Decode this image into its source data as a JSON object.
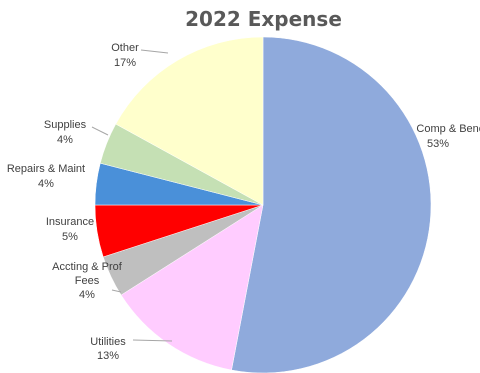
{
  "chart_data": {
    "type": "pie",
    "title": "2022 Expense",
    "slices": [
      {
        "name": "Comp & Bene (R",
        "percent_label": "53%",
        "value": 53,
        "color": "#8faadc"
      },
      {
        "name": "Utilities",
        "percent_label": "13%",
        "value": 13,
        "color": "#ffccff"
      },
      {
        "name": "Accting & Prof Fees",
        "percent_label": "4%",
        "value": 4,
        "color": "#bfbfbf"
      },
      {
        "name": "Insurance",
        "percent_label": "5%",
        "value": 5,
        "color": "#ff0000"
      },
      {
        "name": "Repairs & Maint",
        "percent_label": "4%",
        "value": 4,
        "color": "#4a90d9"
      },
      {
        "name": "Supplies",
        "percent_label": "4%",
        "value": 4,
        "color": "#c5e0b4"
      },
      {
        "name": "Other",
        "percent_label": "17%",
        "value": 17,
        "color": "#ffffcc"
      }
    ],
    "start": "12 o'clock",
    "direction": "clockwise",
    "legend": "none"
  }
}
